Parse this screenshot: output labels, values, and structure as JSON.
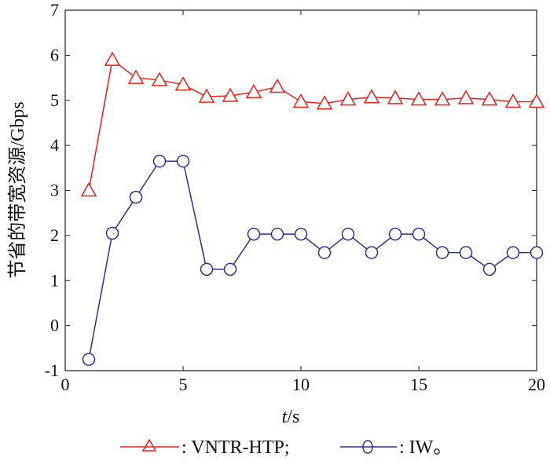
{
  "chart_data": {
    "type": "line",
    "xlabel_italic": "t",
    "xlabel_unit": "/s",
    "ylabel": "节省的带宽资源/Gbps",
    "xlim": [
      0,
      20
    ],
    "ylim": [
      -1,
      7
    ],
    "xticks": [
      0,
      5,
      10,
      15,
      20
    ],
    "yticks": [
      -1,
      0,
      1,
      2,
      3,
      4,
      5,
      6,
      7
    ],
    "grid": false,
    "legend_position": "bottom",
    "x": [
      1,
      2,
      3,
      4,
      5,
      6,
      7,
      8,
      9,
      10,
      11,
      12,
      13,
      14,
      15,
      16,
      17,
      18,
      19,
      20
    ],
    "series": [
      {
        "name": ": VNTR-HTP;",
        "color": "#e8211b",
        "marker": "triangle",
        "values": [
          3.0,
          5.9,
          5.5,
          5.45,
          5.35,
          5.08,
          5.1,
          5.18,
          5.3,
          4.97,
          4.93,
          5.02,
          5.07,
          5.05,
          5.02,
          5.02,
          5.05,
          5.02,
          4.97,
          4.97
        ]
      },
      {
        "name": ": IW。",
        "color": "#2e3192",
        "marker": "circle",
        "values": [
          -0.75,
          2.05,
          2.85,
          3.65,
          3.65,
          1.25,
          1.25,
          2.03,
          2.03,
          2.03,
          1.62,
          2.03,
          1.62,
          2.03,
          2.03,
          1.62,
          1.62,
          1.25,
          1.62,
          1.62
        ]
      }
    ]
  }
}
